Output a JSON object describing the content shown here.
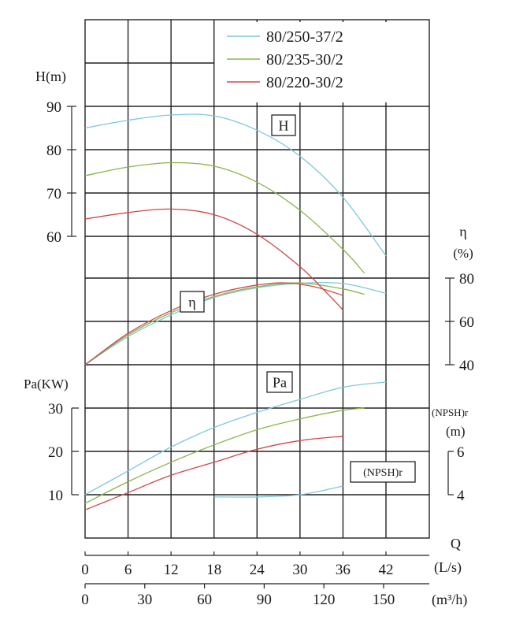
{
  "chart_data": {
    "type": "line",
    "legend": {
      "placement": "top-right",
      "entries": [
        {
          "label": "80/250-37/2",
          "color": "#7ec8dc"
        },
        {
          "label": "80/235-30/2",
          "color": "#8ab54a"
        },
        {
          "label": "80/220-30/2",
          "color": "#d04848"
        }
      ]
    },
    "x_axis": {
      "label_q": "Q",
      "unit_ls": "(L/s)",
      "unit_m3h": "(m³/h)",
      "ticks_ls": [
        "0",
        "6",
        "12",
        "18",
        "24",
        "30",
        "36",
        "42"
      ],
      "ticks_m3h": [
        "0",
        "30",
        "60",
        "90",
        "120",
        "150"
      ],
      "range_ls": [
        0,
        48
      ]
    },
    "head_axis": {
      "label": "H(m)",
      "ticks": [
        "90",
        "80",
        "70",
        "60"
      ],
      "range": [
        60,
        90
      ],
      "box_label": "H"
    },
    "efficiency_axis": {
      "label_symbol": "η",
      "label_unit": "(%)",
      "ticks": [
        "80",
        "60",
        "40"
      ],
      "range": [
        40,
        80
      ],
      "box_label": "η"
    },
    "power_axis": {
      "label": "Pa(KW)",
      "ticks": [
        "30",
        "20",
        "10"
      ],
      "range": [
        10,
        30
      ],
      "box_label": "Pa"
    },
    "npsh_axis": {
      "label": "(NPSH)r",
      "label_unit": "(m)",
      "ticks": [
        "6",
        "4"
      ],
      "range": [
        4,
        6
      ],
      "box_label": "(NPSH)r"
    },
    "series": [
      {
        "name": "80/250-37/2",
        "color": "#7ec8dc",
        "head": [
          [
            0,
            85
          ],
          [
            6,
            86.8
          ],
          [
            12,
            88
          ],
          [
            18,
            87.8
          ],
          [
            24,
            84.5
          ],
          [
            30,
            78.5
          ],
          [
            36,
            69
          ],
          [
            42,
            55.5
          ]
        ],
        "efficiency": [
          [
            0,
            40
          ],
          [
            6,
            53
          ],
          [
            12,
            63
          ],
          [
            18,
            71
          ],
          [
            24,
            75.5
          ],
          [
            30,
            77.6
          ],
          [
            36,
            77.5
          ],
          [
            42,
            73
          ]
        ],
        "power": [
          [
            0,
            10
          ],
          [
            6,
            15.5
          ],
          [
            12,
            21
          ],
          [
            18,
            25.5
          ],
          [
            24,
            29
          ],
          [
            30,
            32
          ],
          [
            36,
            34.8
          ],
          [
            42,
            36
          ]
        ],
        "npsh": [
          [
            18,
            3.9
          ],
          [
            24,
            3.9
          ],
          [
            30,
            4.0
          ],
          [
            36,
            4.4
          ]
        ]
      },
      {
        "name": "80/235-30/2",
        "color": "#8ab54a",
        "head": [
          [
            0,
            74
          ],
          [
            6,
            76
          ],
          [
            12,
            77
          ],
          [
            18,
            76.2
          ],
          [
            24,
            72.5
          ],
          [
            30,
            66
          ],
          [
            36,
            57
          ],
          [
            39,
            51.5
          ]
        ],
        "efficiency": [
          [
            0,
            40
          ],
          [
            6,
            53.8
          ],
          [
            12,
            64
          ],
          [
            18,
            71.5
          ],
          [
            24,
            76
          ],
          [
            30,
            77.8
          ],
          [
            36,
            75
          ],
          [
            39,
            72.5
          ]
        ],
        "power": [
          [
            0,
            8
          ],
          [
            6,
            13
          ],
          [
            12,
            17.5
          ],
          [
            18,
            21.5
          ],
          [
            24,
            25
          ],
          [
            30,
            27.5
          ],
          [
            36,
            29.5
          ],
          [
            39,
            30
          ]
        ],
        "npsh": []
      },
      {
        "name": "80/220-30/2",
        "color": "#d04848",
        "head": [
          [
            0,
            64
          ],
          [
            6,
            65.5
          ],
          [
            12,
            66.3
          ],
          [
            18,
            65
          ],
          [
            24,
            60.5
          ],
          [
            30,
            53
          ],
          [
            34,
            46.5
          ],
          [
            36,
            43
          ]
        ],
        "efficiency": [
          [
            0,
            40
          ],
          [
            6,
            54.5
          ],
          [
            12,
            65
          ],
          [
            18,
            72.5
          ],
          [
            24,
            76.8
          ],
          [
            28,
            77.8
          ],
          [
            32,
            76
          ],
          [
            36,
            72
          ]
        ],
        "power": [
          [
            0,
            6.5
          ],
          [
            6,
            10.5
          ],
          [
            12,
            14.5
          ],
          [
            18,
            17.5
          ],
          [
            24,
            20.5
          ],
          [
            30,
            22.5
          ],
          [
            36,
            23.5
          ]
        ],
        "npsh": []
      }
    ]
  }
}
